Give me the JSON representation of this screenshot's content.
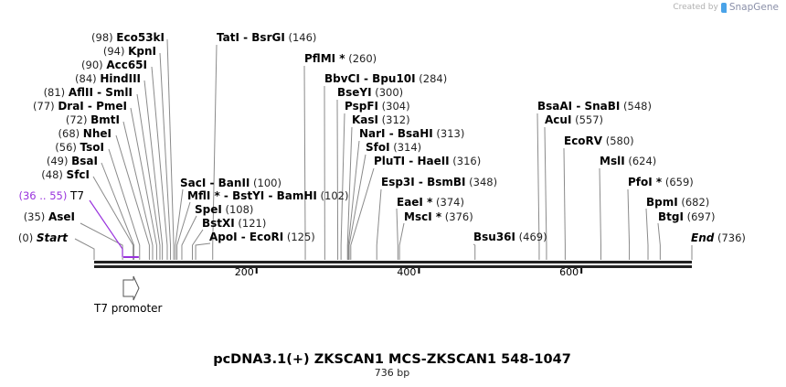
{
  "credit": {
    "created_by": "Created by",
    "brand": "SnapGene"
  },
  "map": {
    "title": "pcDNA3.1(+) ZKSCAN1 MCS-ZKSCAN1 548-1047",
    "length_label": "736 bp",
    "length": 736,
    "colors": {
      "backbone": "#222222",
      "cut_line": "#8a8a8a",
      "t7": "#9933dd"
    },
    "ticks": [
      {
        "bp": 200,
        "label": "200"
      },
      {
        "bp": 400,
        "label": "400"
      },
      {
        "bp": 600,
        "label": "600"
      }
    ],
    "start": {
      "label": "Start",
      "pos": "(0)",
      "bp": 0
    },
    "end": {
      "label": "End",
      "pos": "(736)",
      "bp": 736
    },
    "t7_site": {
      "label": "T7",
      "pos": "(36 .. 55)",
      "start": 36,
      "end": 55
    },
    "feature": {
      "label": "T7 promoter",
      "start": 36,
      "end": 55,
      "direction": "forward"
    },
    "left_sites": [
      {
        "name": "Eco53kI",
        "pos": "(98)",
        "bp": 98
      },
      {
        "name": "KpnI",
        "pos": "(94)",
        "bp": 94
      },
      {
        "name": "Acc65I",
        "pos": "(90)",
        "bp": 90
      },
      {
        "name": "HindIII",
        "pos": "(84)",
        "bp": 84
      },
      {
        "name": "AflII  - SmlI",
        "pos": "(81)",
        "bp": 81
      },
      {
        "name": "DraI  - PmeI",
        "pos": "(77)",
        "bp": 77
      },
      {
        "name": "BmtI",
        "pos": "(72)",
        "bp": 72
      },
      {
        "name": "NheI",
        "pos": "(68)",
        "bp": 68
      },
      {
        "name": "TsoI",
        "pos": "(56)",
        "bp": 56
      },
      {
        "name": "BsaI",
        "pos": "(49)",
        "bp": 49
      },
      {
        "name": "SfcI",
        "pos": "(48)",
        "bp": 48
      },
      {
        "name": "AseI",
        "pos": "(35)",
        "bp": 35
      }
    ],
    "right_sites": [
      {
        "name": "TatI  - BsrGI",
        "pos": "(146)",
        "bp": 146
      },
      {
        "name": "SacI  - BanII",
        "pos": "(100)",
        "bp": 100
      },
      {
        "name": "MflI * - BstYI  - BamHI",
        "pos": "(102)",
        "bp": 102
      },
      {
        "name": "SpeI",
        "pos": "(108)",
        "bp": 108
      },
      {
        "name": "BstXI",
        "pos": "(121)",
        "bp": 121
      },
      {
        "name": "ApoI  - EcoRI",
        "pos": "(125)",
        "bp": 125
      },
      {
        "name": "PflMI *",
        "pos": "(260)",
        "bp": 260
      },
      {
        "name": "BbvCI  - Bpu10I",
        "pos": "(284)",
        "bp": 284
      },
      {
        "name": "BseYI",
        "pos": "(300)",
        "bp": 300
      },
      {
        "name": "PspFI",
        "pos": "(304)",
        "bp": 304
      },
      {
        "name": "KasI",
        "pos": "(312)",
        "bp": 312
      },
      {
        "name": "NarI  - BsaHI",
        "pos": "(313)",
        "bp": 313
      },
      {
        "name": "SfoI",
        "pos": "(314)",
        "bp": 314
      },
      {
        "name": "PluTI  - HaeII",
        "pos": "(316)",
        "bp": 316
      },
      {
        "name": "Esp3I  - BsmBI",
        "pos": "(348)",
        "bp": 348
      },
      {
        "name": "EaeI *",
        "pos": "(374)",
        "bp": 374
      },
      {
        "name": "MscI *",
        "pos": "(376)",
        "bp": 376
      },
      {
        "name": "Bsu36I",
        "pos": "(469)",
        "bp": 469
      },
      {
        "name": "BsaAI  - SnaBI",
        "pos": "(548)",
        "bp": 548
      },
      {
        "name": "AcuI",
        "pos": "(557)",
        "bp": 557
      },
      {
        "name": "EcoRV",
        "pos": "(580)",
        "bp": 580
      },
      {
        "name": "MslI",
        "pos": "(624)",
        "bp": 624
      },
      {
        "name": "PfoI *",
        "pos": "(659)",
        "bp": 659
      },
      {
        "name": "BpmI",
        "pos": "(682)",
        "bp": 682
      },
      {
        "name": "BtgI",
        "pos": "(697)",
        "bp": 697
      }
    ]
  }
}
